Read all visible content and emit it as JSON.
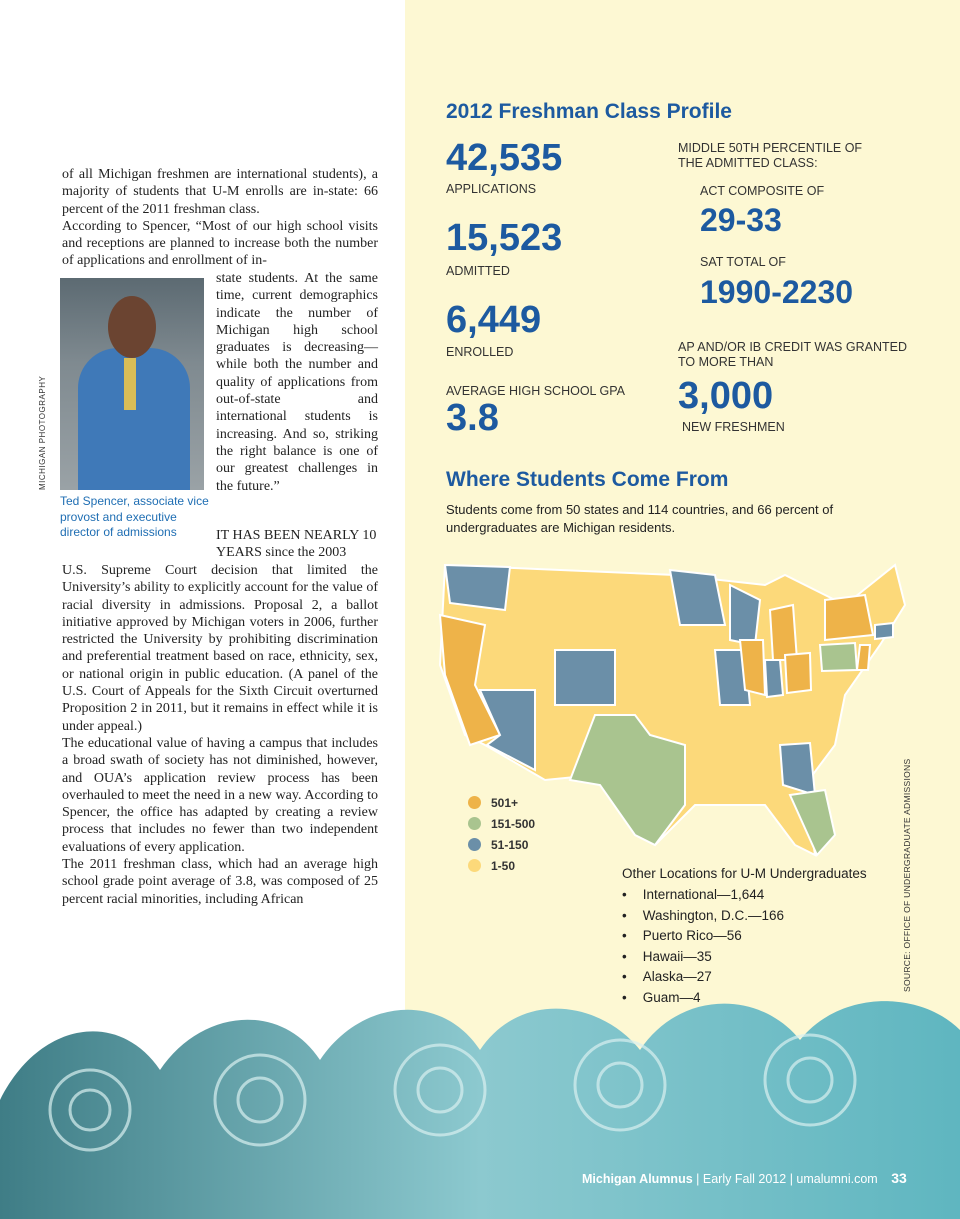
{
  "article": {
    "p1": "of all Michigan freshmen are international students), a majority of students that U-M enrolls are in-state: 66 percent of the 2011 freshman class.",
    "p2a": "According to Spencer, “Most of our high school visits and receptions are planned to increase both the number of applications and enrollment of in-",
    "p2b": "state students. At the same time, current demographics indicate the number of Michigan high school graduates is decreasing—while both the number and quality of applications from out-of-state and international students is increasing. And so, striking the right balance is one of our greatest challenges in the future.”",
    "p3a": "IT HAS BEEN NEARLY 10 YEARS since the 2003",
    "p3b": "U.S. Supreme Court decision that limited the University’s ability to explicitly account for the value of racial diversity in admissions. Proposal 2, a ballot initiative approved by Michigan voters in 2006, further restricted the University by prohibiting discrimination and preferential treatment based on race, ethnicity, sex, or national origin in public education. (A panel of the U.S. Court of Appeals for the Sixth Circuit overturned Proposition 2 in 2011, but it remains in effect while it is under appeal.)",
    "p4": "The educational value of having a campus that includes a broad swath of society has not diminished, however, and OUA’s application review process has been overhauled to meet the need in a new way. According to Spencer, the office has adapted by creating a review process that includes no fewer than two independent evaluations of every application.",
    "p5": "The 2011 freshman class, which had an average high school grade point average of 3.8, was composed of 25 percent racial minorities, including African"
  },
  "photo": {
    "credit": "MICHIGAN PHOTOGRAPHY",
    "caption": "Ted Spencer, associate vice provost and executive director of admissions"
  },
  "profile": {
    "title": "2012 Freshman Class Profile",
    "applications": "42,535",
    "applications_label": "APPLICATIONS",
    "admitted": "15,523",
    "admitted_label": "ADMITTED",
    "enrolled": "6,449",
    "enrolled_label": "ENROLLED",
    "gpa_label": "AVERAGE HIGH SCHOOL GPA",
    "gpa": "3.8",
    "middle_label": "MIDDLE 50TH PERCENTILE OF THE ADMITTED CLASS:",
    "act_label": "ACT COMPOSITE OF",
    "act": "29-33",
    "sat_label": "SAT TOTAL OF",
    "sat": "1990-2230",
    "ap_label": "AP AND/OR IB CREDIT WAS GRANTED TO MORE THAN",
    "ap": "3,000",
    "ap_sub": "NEW FRESHMEN"
  },
  "where": {
    "title": "Where Students Come From",
    "subtitle": "Students come from 50 states and 114 countries, and 66 percent of undergraduates are Michigan residents.",
    "legend": [
      {
        "label": "501+",
        "color": "#eeb349"
      },
      {
        "label": "151-500",
        "color": "#a9c48f"
      },
      {
        "label": "51-150",
        "color": "#6b8fa8"
      },
      {
        "label": "1-50",
        "color": "#fcd97a"
      }
    ],
    "other_title": "Other Locations for U-M Undergraduates",
    "other": [
      "International—1,644",
      "Washington, D.C.—166",
      "Puerto Rico—56",
      "Hawaii—35",
      "Alaska—27",
      "Guam—4"
    ],
    "source": "SOURCE: OFFICE OF UNDERGRADUATE ADMISSIONS"
  },
  "footer": {
    "magazine": "Michigan Alumnus",
    "issue": "| Early Fall 2012 | umalumni.com",
    "page": "33"
  }
}
